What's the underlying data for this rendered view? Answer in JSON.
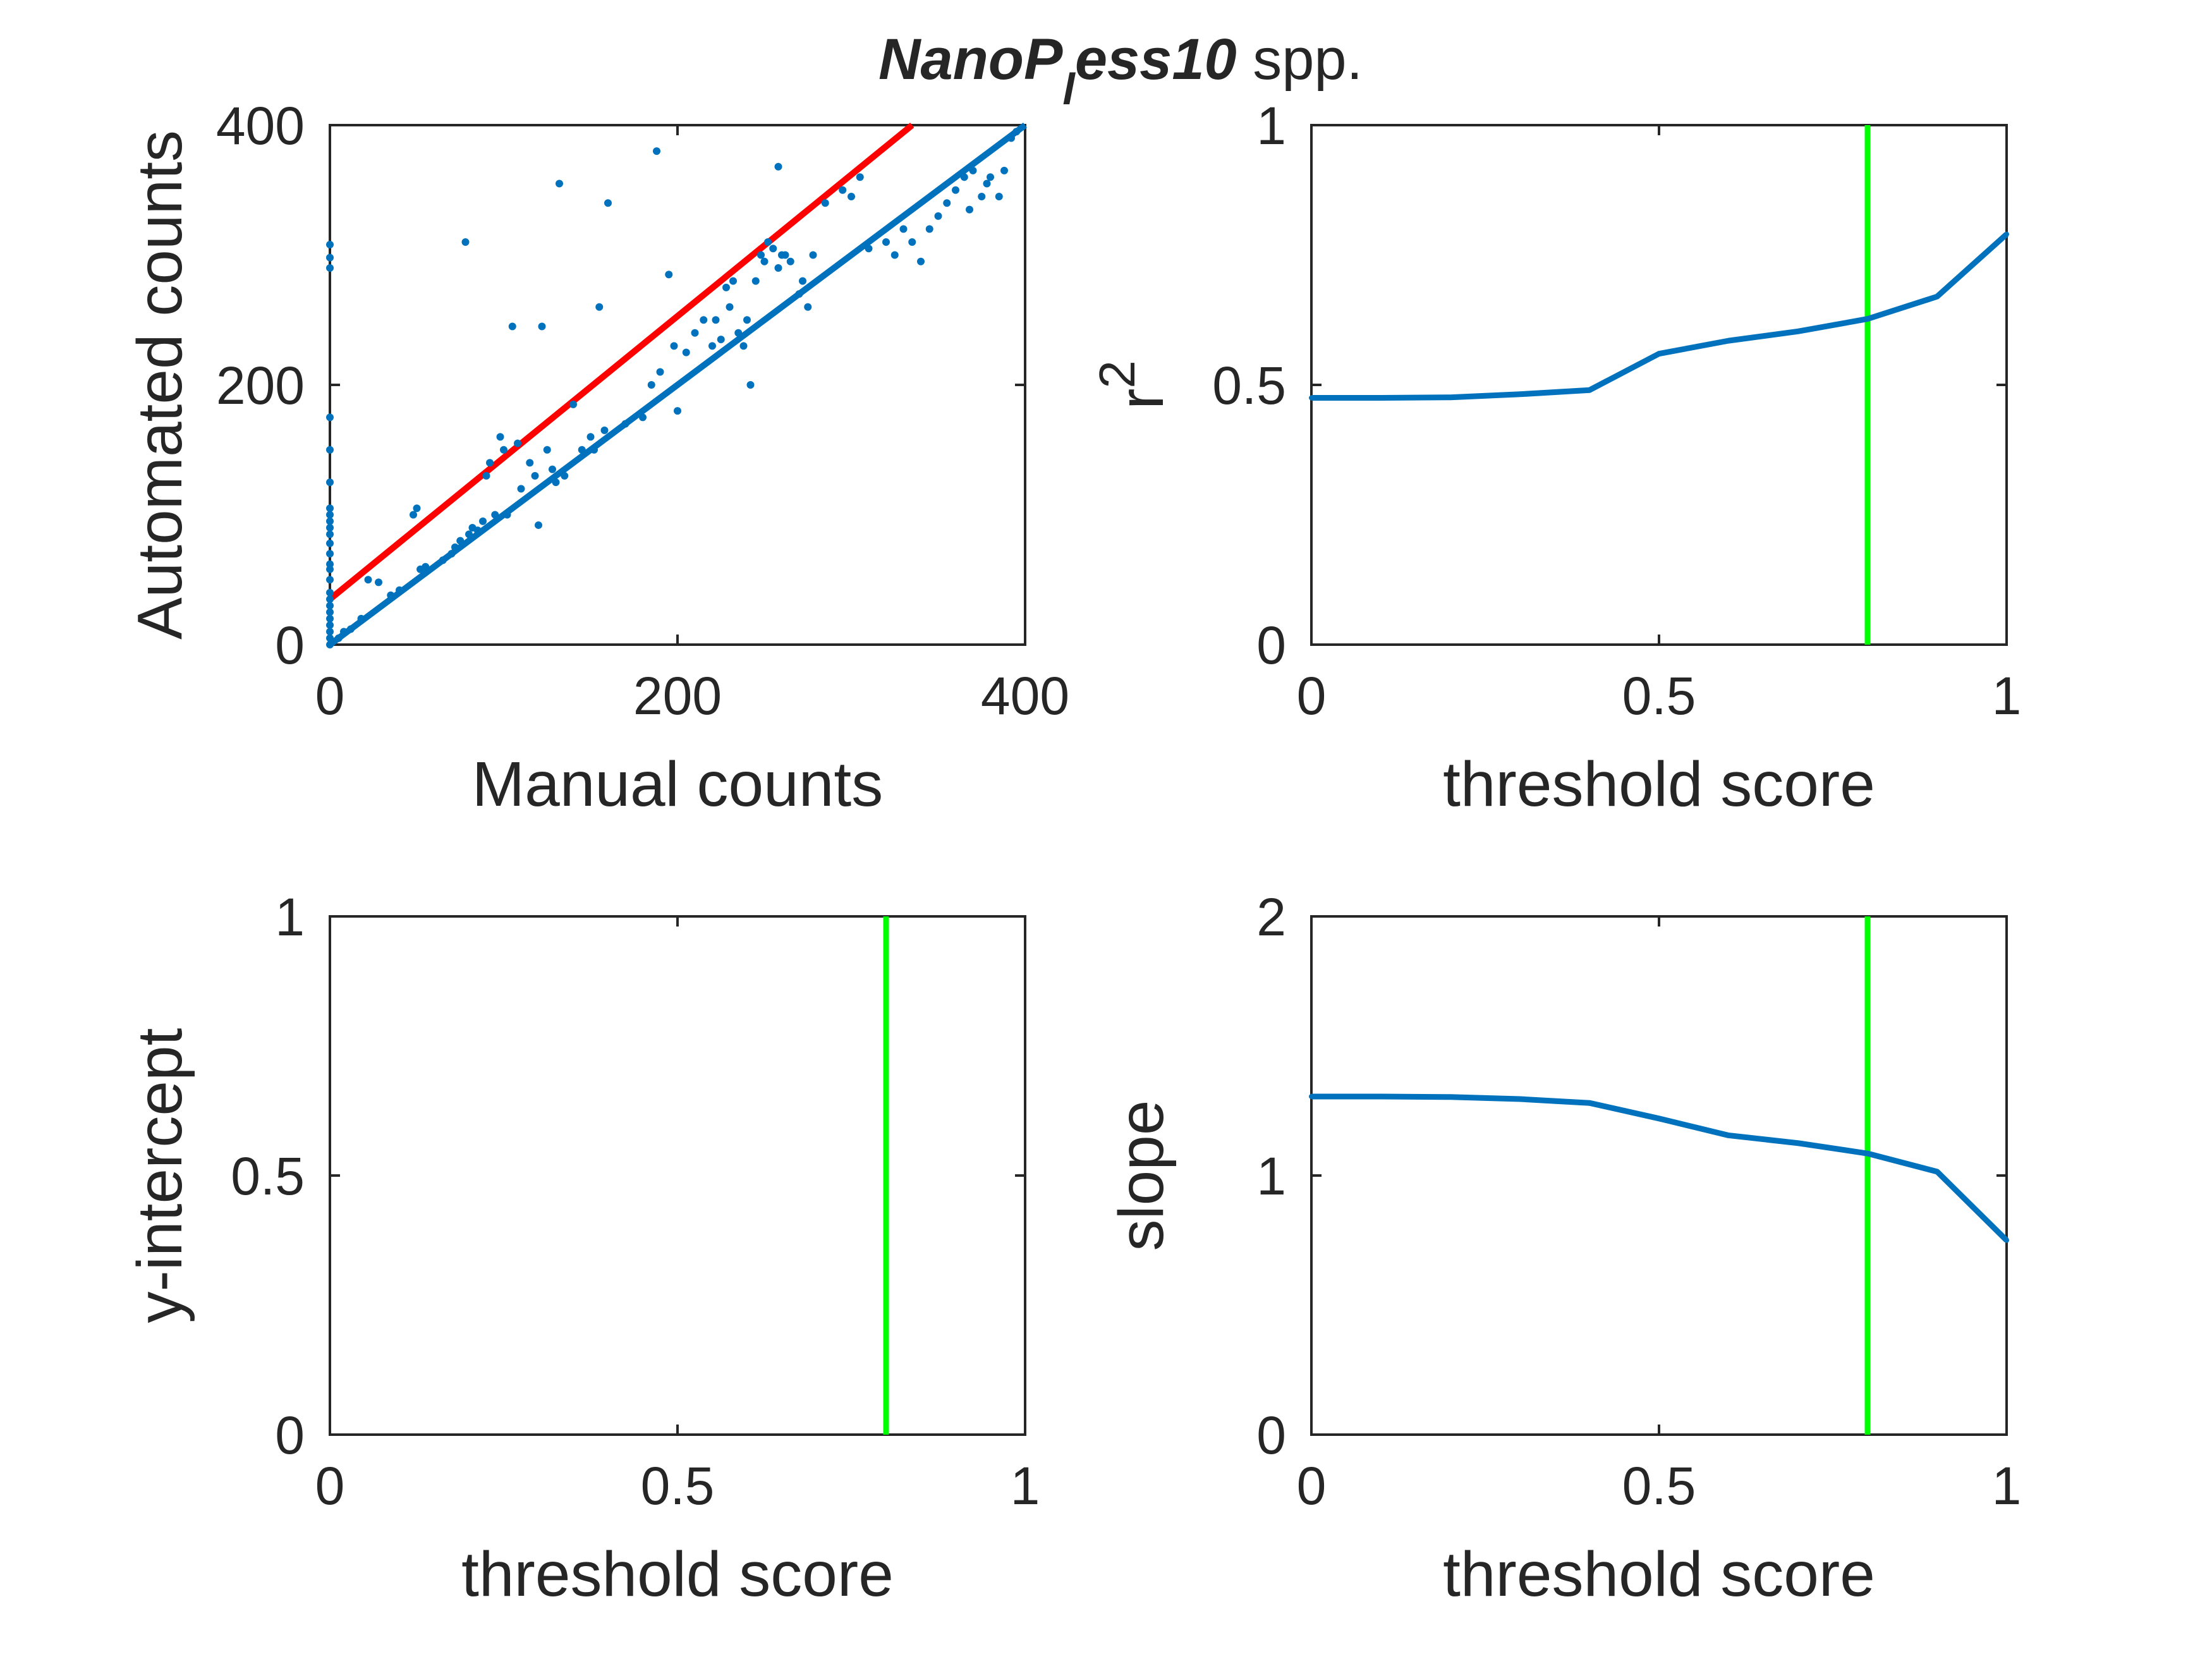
{
  "figure": {
    "title_main": "NanoP",
    "title_sub": "l",
    "title_rest": "ess10",
    "title_suffix": " spp."
  },
  "colors": {
    "series": "#0072bd",
    "fit": "#ff0000",
    "threshold": "#00ff00",
    "axis": "#262626"
  },
  "chart_data": [
    {
      "type": "scatter",
      "id": "counts",
      "xlabel": "Manual counts",
      "ylabel": "Automated counts",
      "xlim": [
        0,
        400
      ],
      "ylim": [
        0,
        400
      ],
      "xticks": [
        0,
        200,
        400
      ],
      "yticks": [
        0,
        200,
        400
      ],
      "xtick_labels": [
        "0",
        "200",
        "400"
      ],
      "ytick_labels": [
        "0",
        "200",
        "400"
      ],
      "points": [
        [
          0,
          0
        ],
        [
          0,
          5
        ],
        [
          0,
          10
        ],
        [
          0,
          15
        ],
        [
          0,
          20
        ],
        [
          0,
          25
        ],
        [
          0,
          30
        ],
        [
          0,
          35
        ],
        [
          0,
          40
        ],
        [
          0,
          50
        ],
        [
          0,
          58
        ],
        [
          0,
          62
        ],
        [
          0,
          70
        ],
        [
          0,
          78
        ],
        [
          0,
          85
        ],
        [
          0,
          90
        ],
        [
          0,
          95
        ],
        [
          0,
          100
        ],
        [
          0,
          105
        ],
        [
          0,
          125
        ],
        [
          0,
          150
        ],
        [
          0,
          175
        ],
        [
          0,
          290
        ],
        [
          0,
          298
        ],
        [
          0,
          308
        ],
        [
          5,
          5
        ],
        [
          8,
          10
        ],
        [
          12,
          12
        ],
        [
          18,
          20
        ],
        [
          22,
          50
        ],
        [
          28,
          48
        ],
        [
          35,
          38
        ],
        [
          40,
          42
        ],
        [
          48,
          100
        ],
        [
          50,
          105
        ],
        [
          52,
          58
        ],
        [
          55,
          60
        ],
        [
          65,
          65
        ],
        [
          70,
          70
        ],
        [
          72,
          75
        ],
        [
          75,
          80
        ],
        [
          78,
          310
        ],
        [
          80,
          85
        ],
        [
          82,
          90
        ],
        [
          85,
          88
        ],
        [
          88,
          95
        ],
        [
          90,
          130
        ],
        [
          92,
          140
        ],
        [
          95,
          100
        ],
        [
          98,
          160
        ],
        [
          100,
          150
        ],
        [
          102,
          100
        ],
        [
          105,
          245
        ],
        [
          108,
          155
        ],
        [
          110,
          120
        ],
        [
          115,
          140
        ],
        [
          118,
          130
        ],
        [
          120,
          92
        ],
        [
          122,
          245
        ],
        [
          125,
          150
        ],
        [
          128,
          135
        ],
        [
          130,
          125
        ],
        [
          132,
          355
        ],
        [
          135,
          130
        ],
        [
          140,
          185
        ],
        [
          145,
          150
        ],
        [
          150,
          160
        ],
        [
          152,
          150
        ],
        [
          155,
          260
        ],
        [
          158,
          165
        ],
        [
          160,
          340
        ],
        [
          170,
          170
        ],
        [
          180,
          175
        ],
        [
          185,
          200
        ],
        [
          188,
          380
        ],
        [
          190,
          210
        ],
        [
          195,
          285
        ],
        [
          198,
          230
        ],
        [
          200,
          180
        ],
        [
          205,
          225
        ],
        [
          210,
          240
        ],
        [
          215,
          250
        ],
        [
          220,
          230
        ],
        [
          222,
          250
        ],
        [
          225,
          235
        ],
        [
          228,
          275
        ],
        [
          230,
          260
        ],
        [
          232,
          280
        ],
        [
          235,
          240
        ],
        [
          238,
          230
        ],
        [
          240,
          250
        ],
        [
          242,
          200
        ],
        [
          245,
          280
        ],
        [
          248,
          300
        ],
        [
          250,
          295
        ],
        [
          252,
          310
        ],
        [
          255,
          305
        ],
        [
          258,
          290
        ],
        [
          260,
          300
        ],
        [
          262,
          300
        ],
        [
          265,
          295
        ],
        [
          270,
          270
        ],
        [
          272,
          280
        ],
        [
          275,
          260
        ],
        [
          278,
          300
        ],
        [
          285,
          340
        ],
        [
          295,
          350
        ],
        [
          300,
          345
        ],
        [
          305,
          360
        ],
        [
          310,
          305
        ],
        [
          320,
          310
        ],
        [
          325,
          300
        ],
        [
          330,
          320
        ],
        [
          335,
          310
        ],
        [
          340,
          295
        ],
        [
          345,
          320
        ],
        [
          350,
          330
        ],
        [
          355,
          340
        ],
        [
          360,
          350
        ],
        [
          365,
          360
        ],
        [
          368,
          335
        ],
        [
          370,
          365
        ],
        [
          375,
          345
        ],
        [
          378,
          355
        ],
        [
          380,
          360
        ],
        [
          385,
          345
        ],
        [
          388,
          365
        ],
        [
          392,
          390
        ],
        [
          395,
          395
        ],
        [
          258,
          368
        ]
      ],
      "fit_lines": [
        {
          "color_key": "fit",
          "x": [
            0,
            335
          ],
          "y": [
            35,
            400
          ]
        },
        {
          "color_key": "series",
          "x": [
            0,
            400
          ],
          "y": [
            0,
            400
          ]
        }
      ]
    },
    {
      "type": "line",
      "id": "r2",
      "xlabel": "threshold score",
      "ylabel": "r",
      "ylabel_sup": "2",
      "xlim": [
        0,
        1
      ],
      "ylim": [
        0,
        1
      ],
      "xticks": [
        0,
        0.5,
        1
      ],
      "yticks": [
        0,
        0.5,
        1
      ],
      "xtick_labels": [
        "0",
        "0.5",
        "1"
      ],
      "ytick_labels": [
        "0",
        "0.5",
        "1"
      ],
      "x": [
        0,
        0.1,
        0.2,
        0.3,
        0.4,
        0.5,
        0.6,
        0.7,
        0.8,
        0.9,
        1.0
      ],
      "y": [
        0.475,
        0.475,
        0.476,
        0.482,
        0.49,
        0.56,
        0.585,
        0.603,
        0.627,
        0.67,
        0.79
      ],
      "threshold_x": 0.8
    },
    {
      "type": "line",
      "id": "intercept",
      "xlabel": "threshold score",
      "ylabel": "y-intercept",
      "xlim": [
        0,
        1
      ],
      "ylim": [
        0,
        1
      ],
      "xticks": [
        0,
        0.5,
        1
      ],
      "yticks": [
        0,
        0.5,
        1
      ],
      "xtick_labels": [
        "0",
        "0.5",
        "1"
      ],
      "ytick_labels": [
        "0",
        "0.5",
        "1"
      ],
      "x": [],
      "y": [],
      "threshold_x": 0.8
    },
    {
      "type": "line",
      "id": "slope",
      "xlabel": "threshold score",
      "ylabel": "slope",
      "xlim": [
        0,
        1
      ],
      "ylim": [
        0,
        2
      ],
      "xticks": [
        0,
        0.5,
        1
      ],
      "yticks": [
        0,
        1,
        2
      ],
      "xtick_labels": [
        "0",
        "0.5",
        "1"
      ],
      "ytick_labels": [
        "0",
        "1",
        "2"
      ],
      "x": [
        0,
        0.1,
        0.2,
        0.3,
        0.4,
        0.5,
        0.6,
        0.7,
        0.8,
        0.9,
        1.0
      ],
      "y": [
        1.305,
        1.305,
        1.303,
        1.295,
        1.28,
        1.22,
        1.155,
        1.125,
        1.085,
        1.015,
        0.75
      ],
      "threshold_x": 0.8
    }
  ]
}
